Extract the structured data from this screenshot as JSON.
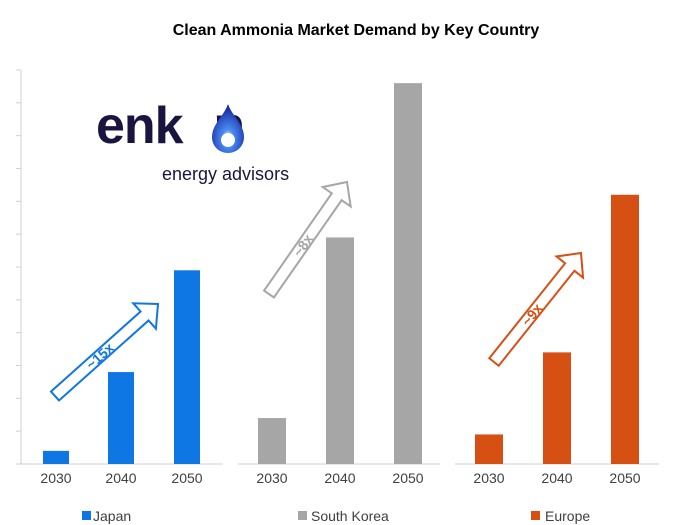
{
  "chart_data": {
    "type": "bar",
    "title": "Clean Ammonia Market Demand by Key Country",
    "categories": [
      "2030",
      "2040",
      "2050"
    ],
    "series": [
      {
        "name": "Japan",
        "color": "#0f77e3",
        "values": [
          0.4,
          2.8,
          5.9
        ],
        "multiplier": "~15x"
      },
      {
        "name": "South Korea",
        "color": "#a6a6a6",
        "values": [
          1.4,
          6.9,
          11.6
        ],
        "multiplier": "~8x"
      },
      {
        "name": "Europe",
        "color": "#d64f13",
        "values": [
          0.9,
          3.4,
          8.2
        ],
        "multiplier": "~9x"
      }
    ],
    "ylim": [
      0,
      12
    ],
    "ytick_count": 12,
    "yaxis_labels": false,
    "legend": "bottom"
  },
  "logo": {
    "word": "enkon",
    "tagline": "energy advisors"
  }
}
